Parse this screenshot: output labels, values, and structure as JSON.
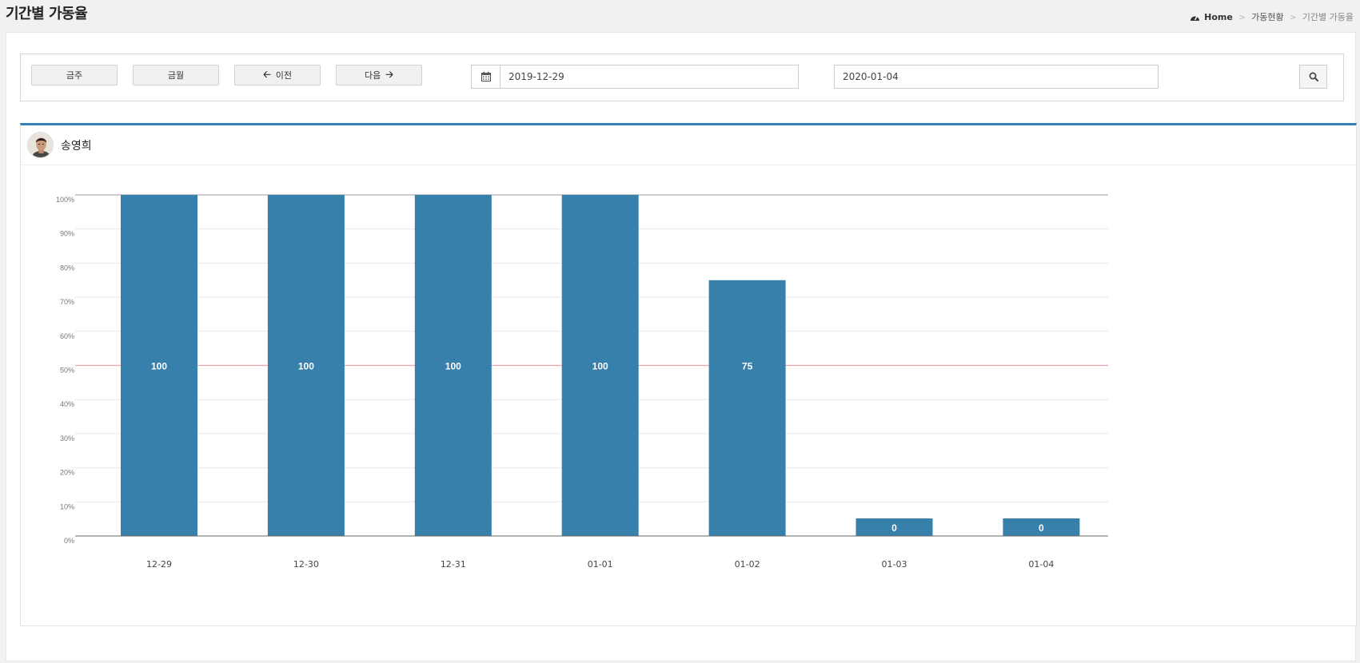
{
  "page": {
    "title": "기간별 가동율"
  },
  "breadcrumb": {
    "home": "Home",
    "parent": "가동현황",
    "current": "기간별 가동율"
  },
  "toolbar": {
    "this_week": "금주",
    "this_month": "금월",
    "prev": "이전",
    "next": "다음",
    "start_date": "2019-12-29",
    "tilde": "~",
    "end_date": "2020-01-04"
  },
  "user": {
    "name": "송영희"
  },
  "colors": {
    "accent": "#3580b4",
    "bar": "#3780ab",
    "reference_line": "#f2a0a8"
  },
  "chart_data": {
    "type": "bar",
    "categories": [
      "12-29",
      "12-30",
      "12-31",
      "01-01",
      "01-02",
      "01-03",
      "01-04"
    ],
    "values": [
      100,
      100,
      100,
      100,
      75,
      0,
      0
    ],
    "data_labels": [
      "100",
      "100",
      "100",
      "100",
      "75",
      "0",
      "0"
    ],
    "ylim": [
      0,
      100
    ],
    "yticks": [
      "0%",
      "10%",
      "20%",
      "30%",
      "40%",
      "50%",
      "60%",
      "70%",
      "80%",
      "90%",
      "100%"
    ],
    "reference_line": 50,
    "grid": true,
    "title": "",
    "xlabel": "",
    "ylabel": ""
  }
}
